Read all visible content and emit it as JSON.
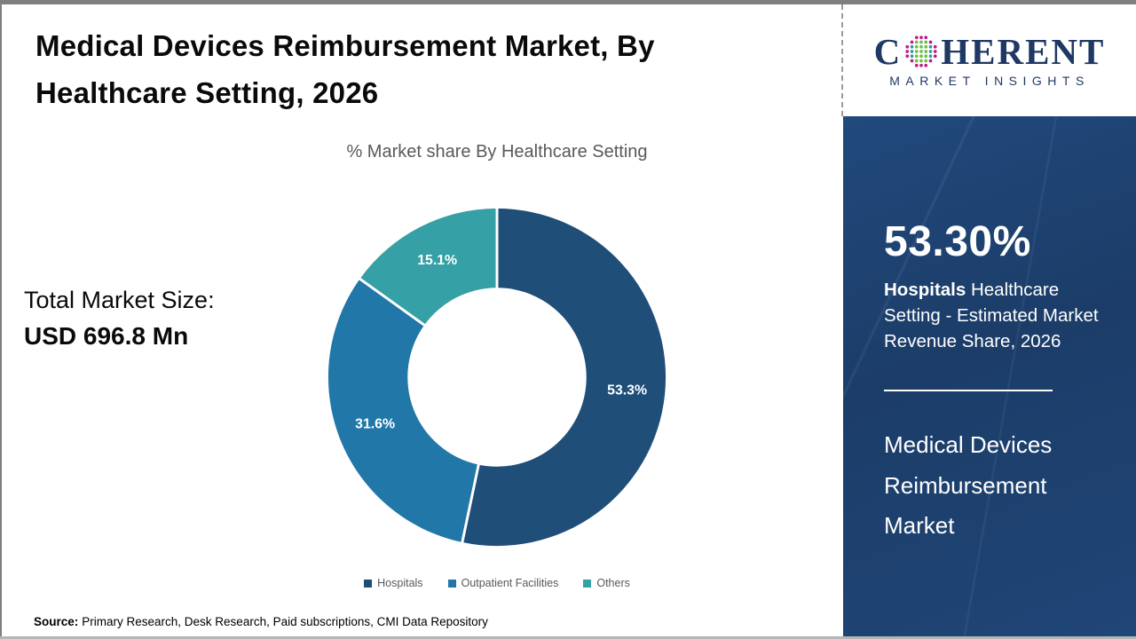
{
  "header": {
    "title": "Medical Devices Reimbursement Market, By Healthcare Setting, 2026"
  },
  "total_market": {
    "label": "Total Market Size:",
    "value": "USD 696.8 Mn"
  },
  "chart_data": {
    "type": "pie",
    "donut": true,
    "title": "% Market share By Healthcare Setting",
    "categories": [
      "Hospitals",
      "Outpatient Facilities",
      "Others"
    ],
    "values": [
      53.3,
      31.6,
      15.1
    ],
    "labels": [
      "53.3%",
      "31.6%",
      "15.1%"
    ],
    "colors": [
      "#1f4e79",
      "#2077a8",
      "#35a0a5"
    ],
    "start_angle_deg": 0,
    "direction": "clockwise",
    "inner_radius_ratio": 0.53,
    "legend_position": "bottom",
    "label_color": "#ffffff"
  },
  "source": {
    "label": "Source:",
    "text": "Primary Research, Desk Research, Paid subscriptions, CMI Data Repository"
  },
  "sidebar": {
    "logo": {
      "word_start": "C",
      "word_end": "HERENT",
      "tagline": "MARKET INSIGHTS",
      "navy": "#1f3864",
      "globe_colors": {
        "outer": "#c4168c",
        "mid": "#2a9d9b",
        "center": "#6cbe45"
      }
    },
    "highlight": {
      "value": "53.30%",
      "bold": "Hospitals",
      "rest": " Healthcare Setting - Estimated Market Revenue Share, 2026"
    },
    "market_name": "Medical Devices Reimbursement Market",
    "background": "#1d4272"
  }
}
